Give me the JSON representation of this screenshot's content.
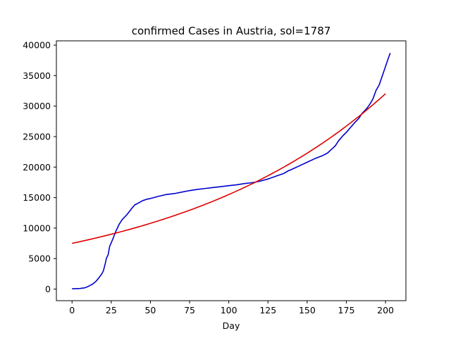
{
  "chart_data": {
    "type": "line",
    "title": "confirmed Cases in Austria, sol=1787",
    "xlabel": "Day",
    "ylabel": "",
    "xlim": [
      -10,
      213
    ],
    "ylim": [
      -1900,
      40700
    ],
    "x_ticks": [
      0,
      25,
      50,
      75,
      100,
      125,
      150,
      175,
      200
    ],
    "y_ticks": [
      0,
      5000,
      10000,
      15000,
      20000,
      25000,
      30000,
      35000,
      40000
    ],
    "grid": false,
    "series": [
      {
        "color": "#0000cc",
        "points": [
          [
            0,
            50
          ],
          [
            5,
            100
          ],
          [
            8,
            200
          ],
          [
            10,
            400
          ],
          [
            13,
            800
          ],
          [
            15,
            1200
          ],
          [
            17,
            1800
          ],
          [
            19,
            2500
          ],
          [
            20,
            3000
          ],
          [
            21,
            4000
          ],
          [
            22,
            5100
          ],
          [
            23,
            5600
          ],
          [
            24,
            7000
          ],
          [
            26,
            8200
          ],
          [
            28,
            9500
          ],
          [
            30,
            10600
          ],
          [
            32,
            11400
          ],
          [
            35,
            12200
          ],
          [
            38,
            13200
          ],
          [
            40,
            13800
          ],
          [
            43,
            14200
          ],
          [
            45,
            14500
          ],
          [
            48,
            14750
          ],
          [
            50,
            14850
          ],
          [
            55,
            15200
          ],
          [
            60,
            15500
          ],
          [
            65,
            15650
          ],
          [
            70,
            15900
          ],
          [
            75,
            16150
          ],
          [
            80,
            16350
          ],
          [
            85,
            16500
          ],
          [
            90,
            16650
          ],
          [
            95,
            16800
          ],
          [
            100,
            16950
          ],
          [
            105,
            17100
          ],
          [
            110,
            17300
          ],
          [
            115,
            17450
          ],
          [
            120,
            17700
          ],
          [
            125,
            18050
          ],
          [
            130,
            18500
          ],
          [
            135,
            18950
          ],
          [
            138,
            19400
          ],
          [
            140,
            19600
          ],
          [
            145,
            20200
          ],
          [
            150,
            20800
          ],
          [
            155,
            21400
          ],
          [
            160,
            21900
          ],
          [
            163,
            22300
          ],
          [
            165,
            22800
          ],
          [
            168,
            23500
          ],
          [
            170,
            24300
          ],
          [
            173,
            25200
          ],
          [
            175,
            25700
          ],
          [
            178,
            26600
          ],
          [
            180,
            27200
          ],
          [
            183,
            28000
          ],
          [
            185,
            28800
          ],
          [
            188,
            29600
          ],
          [
            190,
            30300
          ],
          [
            192,
            31200
          ],
          [
            194,
            32600
          ],
          [
            196,
            33500
          ],
          [
            198,
            35000
          ],
          [
            200,
            36500
          ],
          [
            202,
            38000
          ],
          [
            203,
            38700
          ]
        ]
      },
      {
        "color": "#dd0000",
        "model": "exponential",
        "a": 7500,
        "b": 0.00726,
        "x_range": [
          0,
          200
        ]
      }
    ]
  }
}
